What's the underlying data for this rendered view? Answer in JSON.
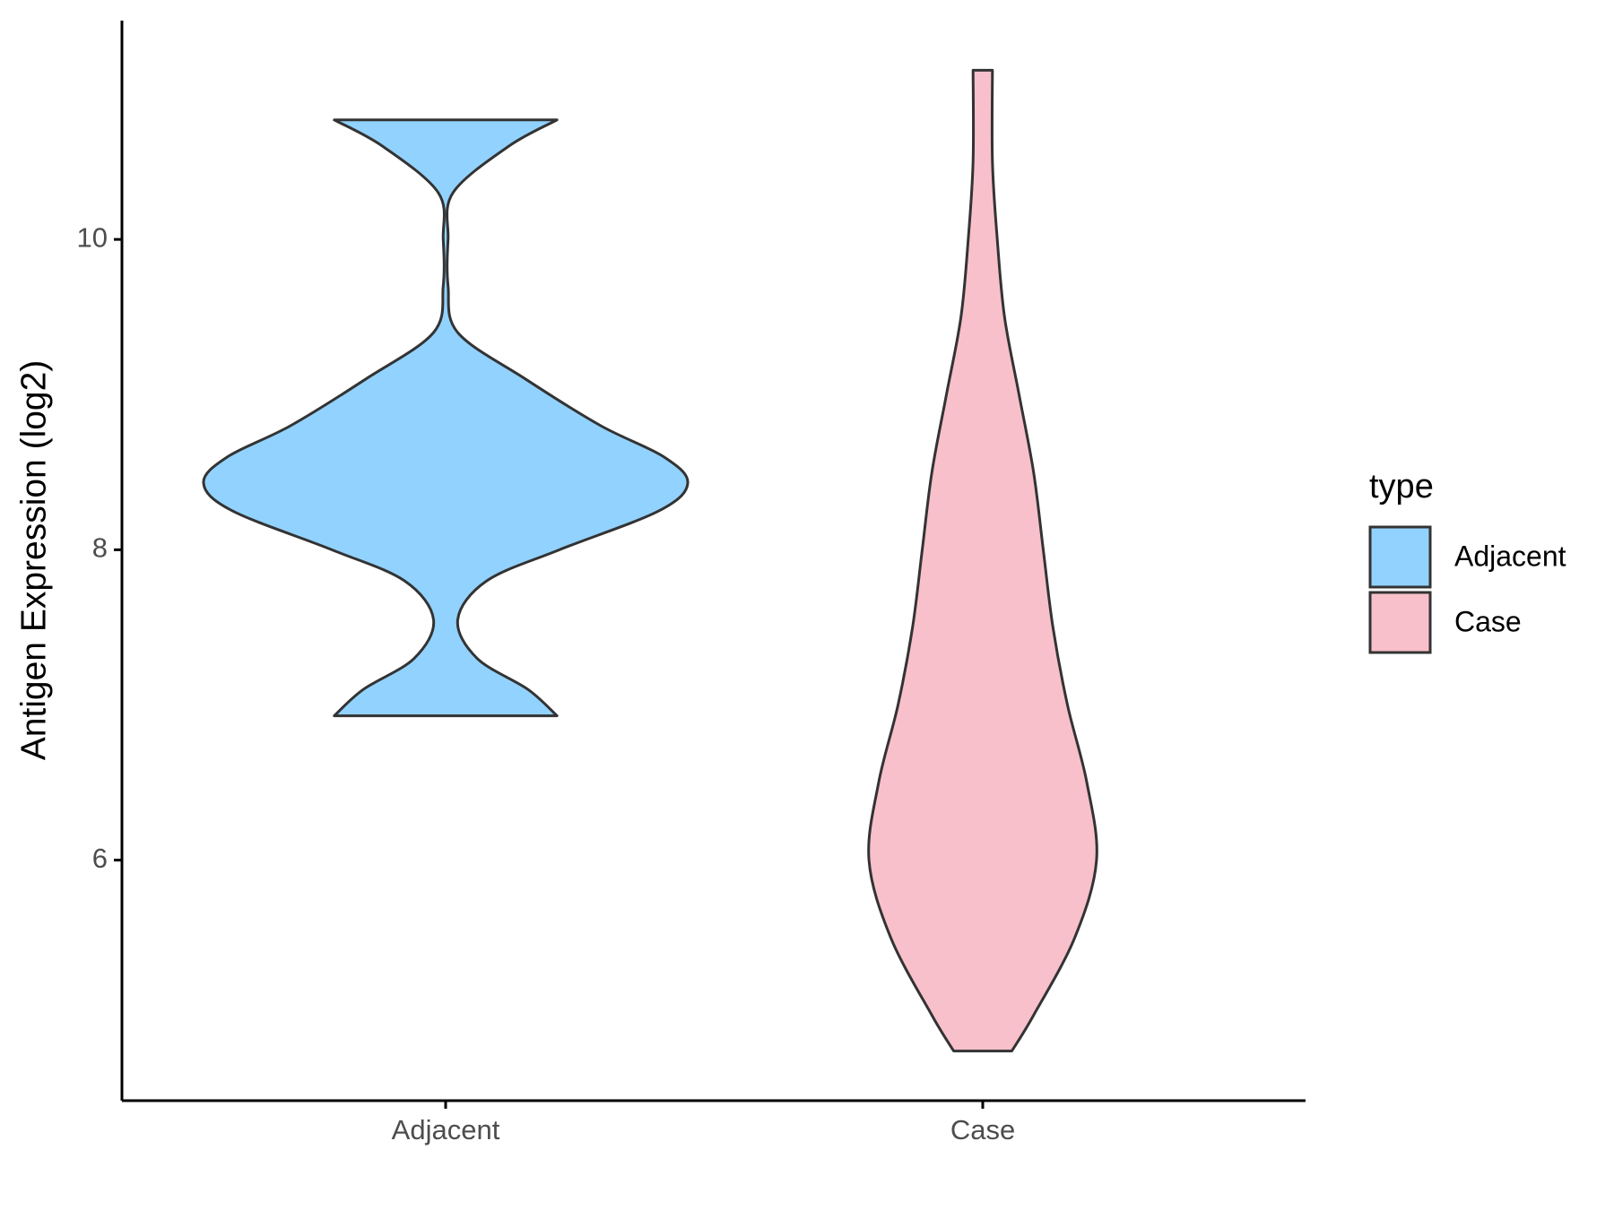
{
  "chart_data": {
    "type": "violin",
    "y_label": "Antigen Expression (log2)",
    "categories": [
      "Adjacent",
      "Case"
    ],
    "ylim": [
      4.45,
      11.41
    ],
    "yticks": [
      6,
      8,
      10
    ],
    "legend_title": "type",
    "legend_position": "right",
    "series": [
      {
        "name": "Adjacent",
        "color": "#92d2fe",
        "y": [
          10.77,
          10.6,
          10.3,
          10.0,
          9.7,
          9.4,
          9.1,
          8.8,
          8.6,
          8.43,
          8.25,
          8.0,
          7.8,
          7.55,
          7.3,
          7.1,
          6.93
        ],
        "width": [
          0.46,
          0.26,
          0.03,
          0.01,
          0.01,
          0.05,
          0.33,
          0.64,
          0.9,
          1.0,
          0.88,
          0.47,
          0.17,
          0.05,
          0.13,
          0.34,
          0.46
        ]
      },
      {
        "name": "Case",
        "color": "#f8c0cb",
        "y": [
          11.09,
          10.5,
          10.0,
          9.5,
          9.0,
          8.5,
          8.0,
          7.5,
          7.0,
          6.5,
          6.0,
          5.5,
          5.0,
          4.77
        ],
        "width": [
          0.04,
          0.04,
          0.06,
          0.09,
          0.15,
          0.21,
          0.25,
          0.29,
          0.35,
          0.43,
          0.47,
          0.38,
          0.21,
          0.12
        ]
      }
    ]
  }
}
